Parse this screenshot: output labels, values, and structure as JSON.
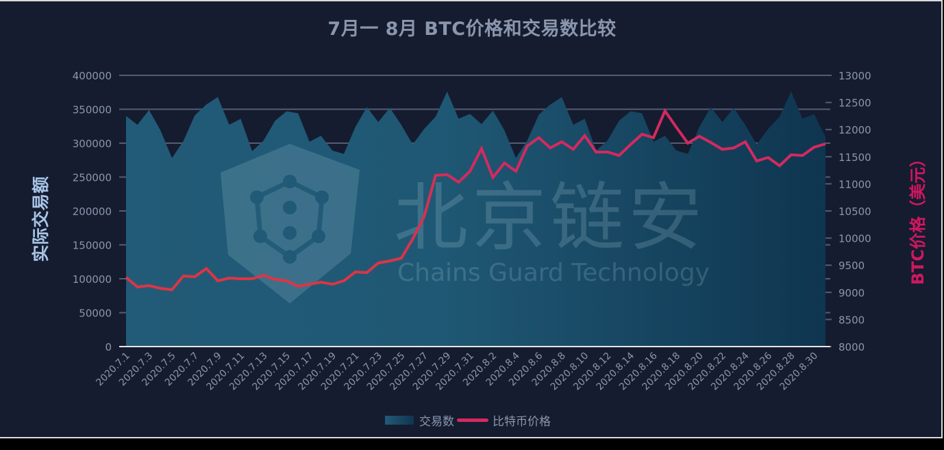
{
  "chart_data": {
    "type": "area+line",
    "title": "7月一 8月 BTC价格和交易数比较",
    "xlabel": "",
    "ylabel_left": "实际交易额",
    "ylabel_right": "BTC价格（美元）",
    "ylim_left": [
      0,
      400000
    ],
    "ylim_right": [
      8000,
      13000
    ],
    "yticks_left": [
      0,
      50000,
      100000,
      150000,
      200000,
      250000,
      300000,
      350000,
      400000
    ],
    "yticks_right": [
      8000,
      8500,
      9000,
      9500,
      10000,
      10500,
      11000,
      11500,
      12000,
      12500,
      13000
    ],
    "grid": true,
    "legend_position": "bottom",
    "x": [
      "2020.7.1",
      "2020.7.2",
      "2020.7.3",
      "2020.7.4",
      "2020.7.5",
      "2020.7.6",
      "2020.7.7",
      "2020.7.8",
      "2020.7.9",
      "2020.7.10",
      "2020.7.11",
      "2020.7.12",
      "2020.7.13",
      "2020.7.14",
      "2020.7.15",
      "2020.7.16",
      "2020.7.17",
      "2020.7.18",
      "2020.7.19",
      "2020.7.20",
      "2020.7.21",
      "2020.7.22",
      "2020.7.23",
      "2020.7.24",
      "2020.7.25",
      "2020.7.26",
      "2020.7.27",
      "2020.7.28",
      "2020.7.29",
      "2020.7.30",
      "2020.7.31",
      "2020.8.1",
      "2020.8.2",
      "2020.8.3",
      "2020.8.4",
      "2020.8.5",
      "2020.8.6",
      "2020.8.7",
      "2020.8.8",
      "2020.8.9",
      "2020.8.10",
      "2020.8.11",
      "2020.8.12",
      "2020.8.13",
      "2020.8.14",
      "2020.8.15",
      "2020.8.16",
      "2020.8.17",
      "2020.8.18",
      "2020.8.19",
      "2020.8.20",
      "2020.8.21",
      "2020.8.22",
      "2020.8.23",
      "2020.8.24",
      "2020.8.25",
      "2020.8.26",
      "2020.8.27",
      "2020.8.28",
      "2020.8.29",
      "2020.8.30",
      "2020.8.31"
    ],
    "x_tick_labels": [
      "2020.7.1",
      "2020.7.3",
      "2020.7.5",
      "2020.7.7",
      "2020.7.9",
      "2020.7.11",
      "2020.7.13",
      "2020.7.15",
      "2020.7.17",
      "2020.7.19",
      "2020.7.21",
      "2020.7.23",
      "2020.7.25",
      "2020.7.27",
      "2020.7.29",
      "2020.7.31",
      "2020.8.2",
      "2020.8.4",
      "2020.8.6",
      "2020.8.8",
      "2020.8.10",
      "2020.8.12",
      "2020.8.14",
      "2020.8.16",
      "2020.8.18",
      "2020.8.20",
      "2020.8.22",
      "2020.8.24",
      "2020.8.26",
      "2020.8.28",
      "2020.8.30"
    ],
    "series": [
      {
        "name": "交易数",
        "type": "area",
        "axis": "left",
        "color": "#225b77",
        "values": [
          340000,
          327000,
          349000,
          319000,
          278000,
          303000,
          341000,
          357000,
          368000,
          327000,
          336000,
          288000,
          304000,
          333000,
          347000,
          344000,
          302000,
          311000,
          289000,
          284000,
          324000,
          353000,
          331000,
          352000,
          327000,
          298000,
          321000,
          339000,
          376000,
          336000,
          343000,
          328000,
          348000,
          319000,
          278000,
          304000,
          342000,
          357000,
          368000,
          327000,
          336000,
          289000,
          304000,
          333000,
          347000,
          344000,
          302000,
          311000,
          289000,
          284000,
          324000,
          353000,
          331000,
          352000,
          327000,
          298000,
          321000,
          339000,
          376000,
          336000,
          343000,
          309000
        ]
      },
      {
        "name": "比特币价格",
        "type": "line",
        "axis": "right",
        "color": "#d32a5f",
        "values": [
          9275,
          9098,
          9124,
          9073,
          9048,
          9300,
          9288,
          9440,
          9212,
          9263,
          9250,
          9250,
          9313,
          9237,
          9212,
          9111,
          9149,
          9187,
          9149,
          9212,
          9376,
          9364,
          9540,
          9578,
          9629,
          9982,
          10399,
          11157,
          11170,
          11030,
          11232,
          11649,
          11119,
          11384,
          11232,
          11700,
          11851,
          11662,
          11775,
          11636,
          11889,
          11586,
          11586,
          11523,
          11725,
          11914,
          11851,
          12343,
          12040,
          11750,
          11876,
          11763,
          11636,
          11662,
          11775,
          11422,
          11485,
          11333,
          11535,
          11523,
          11674,
          11737
        ]
      }
    ]
  },
  "title": "7月一 8月 BTC价格和交易数比较",
  "axis": {
    "left_title": "实际交易额",
    "right_title": "BTC价格（美元）"
  },
  "legend": {
    "volume": "交易数",
    "price": "比特币价格"
  },
  "watermark": {
    "cn": "北京链安",
    "en": "Chains Guard Technology"
  },
  "colors": {
    "background": "#151c30",
    "area_left": "#225b77",
    "area_right": "#0f3550",
    "line": "#d32a5f",
    "line_early": "#dc3545",
    "grid": "#555d73",
    "text": "#8a96ad",
    "axis_title_left": "#a8c4e6",
    "axis_title_right": "#d0175f"
  }
}
